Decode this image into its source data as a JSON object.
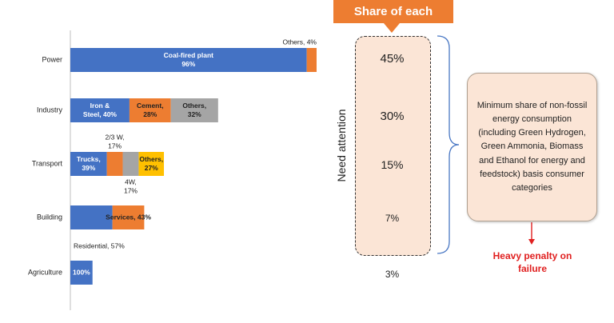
{
  "chart_data": {
    "type": "bar",
    "orientation": "horizontal",
    "stacked": true,
    "categories": [
      "Power",
      "Industry",
      "Transport",
      "Building",
      "Agriculture"
    ],
    "segments": [
      {
        "category": "Power",
        "label": "Coal-fired plant\n96%",
        "value": 96,
        "color": "#4472c4",
        "label_position": "inside"
      },
      {
        "category": "Power",
        "label": "Others, 4%",
        "value": 4,
        "color": "#ed7d31",
        "label_position": "above"
      },
      {
        "category": "Industry",
        "label": "Iron &\nSteel, 40%",
        "value": 40,
        "color": "#4472c4",
        "label_position": "inside"
      },
      {
        "category": "Industry",
        "label": "Cement,\n28%",
        "value": 28,
        "color": "#ed7d31",
        "label_position": "inside"
      },
      {
        "category": "Industry",
        "label": "Others,\n32%",
        "value": 32,
        "color": "#a5a5a5",
        "label_position": "inside"
      },
      {
        "category": "Transport",
        "label": "Trucks,\n39%",
        "value": 39,
        "color": "#4472c4",
        "label_position": "inside"
      },
      {
        "category": "Transport",
        "label": "2/3 W,\n17%",
        "value": 17,
        "color": "#ed7d31",
        "label_position": "above"
      },
      {
        "category": "Transport",
        "label": "4W,\n17%",
        "value": 17,
        "color": "#a5a5a5",
        "label_position": "below"
      },
      {
        "category": "Transport",
        "label": "Others,\n27%",
        "value": 27,
        "color": "#ffc000",
        "label_position": "inside"
      },
      {
        "category": "Building",
        "label": "Residential, 57%",
        "value": 57,
        "color": "#4472c4",
        "label_position": "below"
      },
      {
        "category": "Building",
        "label": "Services, 43%",
        "value": 43,
        "color": "#ed7d31",
        "label_position": "inside"
      },
      {
        "category": "Agriculture",
        "label": "100%",
        "value": 100,
        "color": "#4472c4",
        "label_position": "inside"
      }
    ],
    "segment_widths": {
      "Power": 100,
      "Industry": 60,
      "Transport": 38,
      "Building": 30,
      "Agriculture": 9
    },
    "title": "",
    "xlabel": "",
    "ylabel": "",
    "grid": false
  },
  "share": {
    "title": "Share of each",
    "vertical_label": "Need attention",
    "values": [
      "45%",
      "30%",
      "15%",
      "7%",
      "3%"
    ]
  },
  "note": "Minimum share of non-fossil energy consumption (including Green Hydrogen, Green Ammonia, Biomass and Ethanol for energy and feedstock) basis consumer categories",
  "penalty": "Heavy penalty on failure"
}
